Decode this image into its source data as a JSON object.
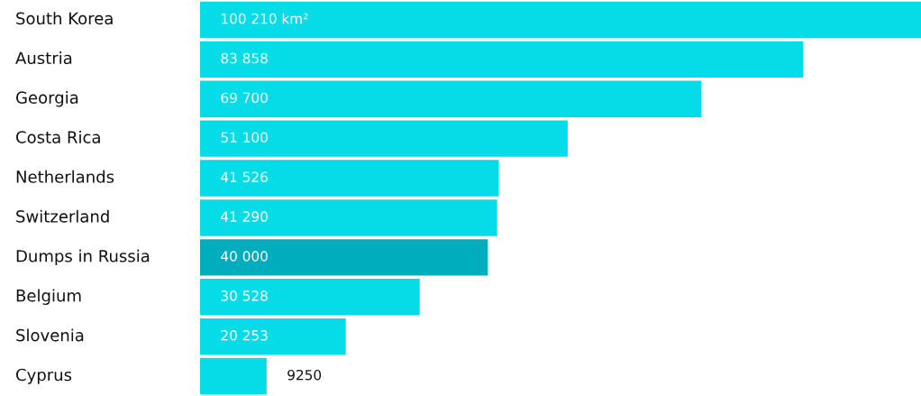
{
  "chart_data": {
    "type": "bar",
    "orientation": "horizontal",
    "categories": [
      "South Korea",
      "Austria",
      "Georgia",
      "Costa Rica",
      "Netherlands",
      "Switzerland",
      "Dumps in Russia",
      "Belgium",
      "Slovenia",
      "Cyprus"
    ],
    "values": [
      100210,
      83858,
      69700,
      51100,
      41526,
      41290,
      40000,
      30528,
      20253,
      9250
    ],
    "value_labels": [
      "100 210 km²",
      "83 858",
      "69 700",
      "51 100",
      "41 526",
      "41 290",
      "40 000",
      "30 528",
      "20 253",
      "9250"
    ],
    "colors": [
      "#06dbe8",
      "#06dbe8",
      "#06dbe8",
      "#06dbe8",
      "#06dbe8",
      "#06dbe8",
      "#00adbd",
      "#06dbe8",
      "#06dbe8",
      "#06dbe8"
    ],
    "legend": false
  }
}
